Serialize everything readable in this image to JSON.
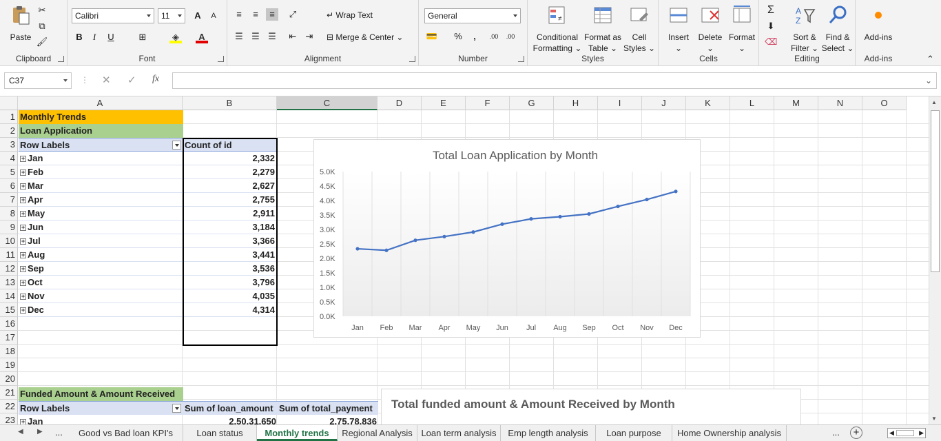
{
  "ribbon": {
    "clipboard": {
      "label": "Clipboard",
      "paste": "Paste"
    },
    "font": {
      "label": "Font",
      "family": "Calibri",
      "size": "11",
      "bold": "B",
      "italic": "I",
      "underline": "U",
      "grow": "A",
      "shrink": "A"
    },
    "alignment": {
      "label": "Alignment",
      "wrap_text": "Wrap Text",
      "merge_center": "Merge & Center"
    },
    "number": {
      "label": "Number",
      "format": "General",
      "percent": "%",
      "comma": ",",
      "inc_decimal": ".00",
      "dec_decimal": ".00"
    },
    "styles": {
      "label": "Styles",
      "conditional": [
        "Conditional",
        "Formatting"
      ],
      "format_table": [
        "Format as",
        "Table"
      ],
      "cell_styles": [
        "Cell",
        "Styles"
      ]
    },
    "cells": {
      "label": "Cells",
      "insert": "Insert",
      "delete": "Delete",
      "format": "Format"
    },
    "editing": {
      "label": "Editing",
      "sort": [
        "Sort &",
        "Filter"
      ],
      "find": [
        "Find &",
        "Select"
      ]
    },
    "addins": {
      "label": "Add-ins",
      "addins": "Add-ins"
    },
    "accent_color": "#217346"
  },
  "formula_bar": {
    "name_box": "C37",
    "fx": "fx",
    "content": ""
  },
  "columns": [
    "A",
    "B",
    "C",
    "D",
    "E",
    "F",
    "G",
    "H",
    "I",
    "J",
    "K",
    "L",
    "M",
    "N",
    "O"
  ],
  "selected_column": "C",
  "rows": [
    "1",
    "2",
    "3",
    "4",
    "5",
    "6",
    "7",
    "8",
    "9",
    "10",
    "11",
    "12",
    "13",
    "14",
    "15",
    "16",
    "17",
    "18",
    "19",
    "20",
    "21",
    "22",
    "23"
  ],
  "sheet": {
    "title": "Monthly Trends",
    "section1": "Loan Application",
    "pivot1": {
      "row_labels": "Row Labels",
      "value_header": "Count of id",
      "rows": [
        {
          "month": "Jan",
          "count": "2,332"
        },
        {
          "month": "Feb",
          "count": "2,279"
        },
        {
          "month": "Mar",
          "count": "2,627"
        },
        {
          "month": "Apr",
          "count": "2,755"
        },
        {
          "month": "May",
          "count": "2,911"
        },
        {
          "month": "Jun",
          "count": "3,184"
        },
        {
          "month": "Jul",
          "count": "3,366"
        },
        {
          "month": "Aug",
          "count": "3,441"
        },
        {
          "month": "Sep",
          "count": "3,536"
        },
        {
          "month": "Oct",
          "count": "3,796"
        },
        {
          "month": "Nov",
          "count": "4,035"
        },
        {
          "month": "Dec",
          "count": "4,314"
        }
      ]
    },
    "section2": "Funded Amount & Amount Received",
    "pivot2": {
      "row_labels": "Row Labels",
      "col1": "Sum of loan_amount",
      "col2": "Sum of total_payment",
      "first_row": {
        "month": "Jan",
        "loan_amount": "2,50,31,650",
        "total_payment": "2,75,78,836"
      }
    },
    "title_color": "#ffc000",
    "section_color": "#a9d08e",
    "header_color": "#d9e1f2"
  },
  "chart_data": [
    {
      "type": "line",
      "title": "Total Loan Application by Month",
      "categories": [
        "Jan",
        "Feb",
        "Mar",
        "Apr",
        "May",
        "Jun",
        "Jul",
        "Aug",
        "Sep",
        "Oct",
        "Nov",
        "Dec"
      ],
      "values": [
        2332,
        2279,
        2627,
        2755,
        2911,
        3184,
        3366,
        3441,
        3536,
        3796,
        4035,
        4314
      ],
      "yticks": [
        "0.0K",
        "0.5K",
        "1.0K",
        "1.5K",
        "2.0K",
        "2.5K",
        "3.0K",
        "3.5K",
        "4.0K",
        "4.5K",
        "5.0K"
      ],
      "ylim": [
        0,
        5000
      ],
      "color": "#4472c4",
      "grid": "vertical"
    },
    {
      "type": "line",
      "title": "Total funded amount & Amount Received by Month"
    }
  ],
  "sheet_tabs": {
    "items": [
      "Good vs Bad loan KPI's",
      "Loan status",
      "Monthly trends",
      "Regional Analysis",
      "Loan term analysis",
      "Emp length analysis",
      "Loan purpose",
      "Home Ownership analysis"
    ],
    "active": "Monthly trends",
    "ellipsis": "...",
    "add": "+"
  }
}
